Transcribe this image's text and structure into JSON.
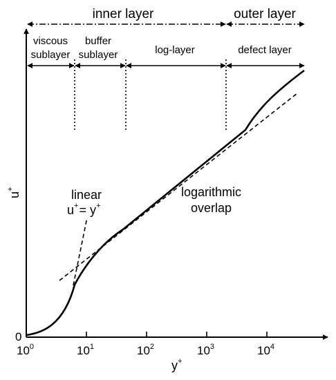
{
  "regions_top": {
    "inner_layer": "inner layer",
    "outer_layer": "outer layer"
  },
  "regions": {
    "viscous_line1": "viscous",
    "viscous_line2": "sublayer",
    "buffer_line1": "buffer",
    "buffer_line2": "sublayer",
    "log_layer": "log-layer",
    "defect_layer": "defect layer"
  },
  "annotations": {
    "linear_line1": "linear",
    "linear_line2_left": "u",
    "linear_line2_eq": "= y",
    "linear_sup": "+",
    "logarithmic_line1": "logarithmic",
    "logarithmic_line2": "overlap"
  },
  "axes": {
    "y_label": "u",
    "x_label": "y",
    "label_sup": "+",
    "origin_y": "0",
    "x_tick_base": "10",
    "x_tick_exponents": [
      "0",
      "1",
      "2",
      "3",
      "4"
    ]
  }
}
